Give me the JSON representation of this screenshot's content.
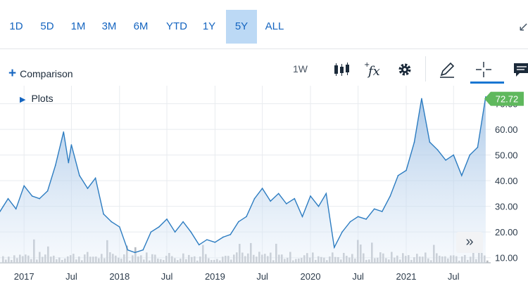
{
  "ranges": [
    "1D",
    "5D",
    "1M",
    "3M",
    "6M",
    "YTD",
    "1Y",
    "5Y",
    "ALL"
  ],
  "active_range": "5Y",
  "toolbar": {
    "comparison_label": "Comparison",
    "interval_label": "1W"
  },
  "plots_label": "Plots",
  "icons": [
    "collapse-arrow-icon",
    "candlestick-icon",
    "function-icon",
    "gear-icon",
    "pencil-icon",
    "crosshair-icon",
    "comment-icon",
    "chevrons-right-icon"
  ],
  "colors": {
    "accent": "#1565c0",
    "line": "#2c7cc1",
    "last_price_badge": "#5fb85d"
  },
  "chart_data": {
    "type": "area",
    "series": [
      {
        "values": [
          {
            "x": "2016-10",
            "y": 28
          },
          {
            "x": "2016-11",
            "y": 33
          },
          {
            "x": "2016-12",
            "y": 29
          },
          {
            "x": "2017-01",
            "y": 38
          },
          {
            "x": "2017-02",
            "y": 34
          },
          {
            "x": "2017-03",
            "y": 33
          },
          {
            "x": "2017-04",
            "y": 36
          },
          {
            "x": "2017-05",
            "y": 46
          },
          {
            "x": "2017-06",
            "y": 59
          },
          {
            "x": "2017-06-20",
            "y": 47
          },
          {
            "x": "2017-07",
            "y": 54
          },
          {
            "x": "2017-08",
            "y": 42
          },
          {
            "x": "2017-09",
            "y": 37
          },
          {
            "x": "2017-10",
            "y": 41
          },
          {
            "x": "2017-11",
            "y": 27
          },
          {
            "x": "2017-12",
            "y": 24
          },
          {
            "x": "2018-01",
            "y": 22
          },
          {
            "x": "2018-02",
            "y": 13
          },
          {
            "x": "2018-03",
            "y": 12
          },
          {
            "x": "2018-04",
            "y": 13
          },
          {
            "x": "2018-05",
            "y": 20
          },
          {
            "x": "2018-06",
            "y": 22
          },
          {
            "x": "2018-07",
            "y": 25
          },
          {
            "x": "2018-08",
            "y": 20
          },
          {
            "x": "2018-09",
            "y": 24
          },
          {
            "x": "2018-10",
            "y": 20
          },
          {
            "x": "2018-11",
            "y": 15
          },
          {
            "x": "2018-12",
            "y": 17
          },
          {
            "x": "2019-01",
            "y": 16
          },
          {
            "x": "2019-02",
            "y": 18
          },
          {
            "x": "2019-03",
            "y": 19
          },
          {
            "x": "2019-04",
            "y": 24
          },
          {
            "x": "2019-05",
            "y": 26
          },
          {
            "x": "2019-06",
            "y": 33
          },
          {
            "x": "2019-07",
            "y": 37
          },
          {
            "x": "2019-08",
            "y": 32
          },
          {
            "x": "2019-09",
            "y": 35
          },
          {
            "x": "2019-10",
            "y": 31
          },
          {
            "x": "2019-11",
            "y": 33
          },
          {
            "x": "2019-12",
            "y": 26
          },
          {
            "x": "2020-01",
            "y": 34
          },
          {
            "x": "2020-02",
            "y": 30
          },
          {
            "x": "2020-03",
            "y": 35
          },
          {
            "x": "2020-04",
            "y": 14
          },
          {
            "x": "2020-05",
            "y": 20
          },
          {
            "x": "2020-06",
            "y": 24
          },
          {
            "x": "2020-07",
            "y": 26
          },
          {
            "x": "2020-08",
            "y": 25
          },
          {
            "x": "2020-09",
            "y": 29
          },
          {
            "x": "2020-10",
            "y": 28
          },
          {
            "x": "2020-11",
            "y": 34
          },
          {
            "x": "2020-12",
            "y": 42
          },
          {
            "x": "2021-01",
            "y": 44
          },
          {
            "x": "2021-02",
            "y": 55
          },
          {
            "x": "2021-03",
            "y": 72
          },
          {
            "x": "2021-04",
            "y": 55
          },
          {
            "x": "2021-05",
            "y": 52
          },
          {
            "x": "2021-06",
            "y": 48
          },
          {
            "x": "2021-07",
            "y": 50
          },
          {
            "x": "2021-08",
            "y": 42
          },
          {
            "x": "2021-09",
            "y": 50
          },
          {
            "x": "2021-10",
            "y": 53
          },
          {
            "x": "2021-11",
            "y": 72.72
          }
        ]
      }
    ],
    "last_value_label": "72.72",
    "x_tick_labels": [
      "2017",
      "Jul",
      "2018",
      "Jul",
      "2019",
      "Jul",
      "2020",
      "Jul",
      "2021",
      "Jul"
    ],
    "y_tick_labels": [
      "10.00",
      "20.00",
      "30.00",
      "40.00",
      "50.00",
      "60.00",
      "70.00"
    ],
    "ylim": [
      8,
      77
    ],
    "grid": true,
    "volume_bars": true
  }
}
